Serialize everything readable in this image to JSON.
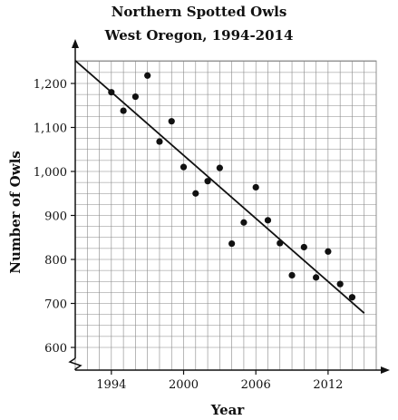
{
  "chart_data": {
    "type": "scatter",
    "title": "Northern Spotted Owls",
    "subtitle": "West Oregon, 1994-2014",
    "xlabel": "Year",
    "ylabel": "Number of Owls",
    "xlim": [
      1991,
      2016
    ],
    "ylim": [
      600,
      1250
    ],
    "x_ticks": [
      1994,
      2000,
      2006,
      2012
    ],
    "x_tick_labels": [
      "1994",
      "2000",
      "2006",
      "2012"
    ],
    "y_ticks": [
      600,
      700,
      800,
      900,
      1000,
      1100,
      1200
    ],
    "y_tick_labels": [
      "600",
      "700",
      "800",
      "900",
      "1,000",
      "1,100",
      "1,200"
    ],
    "grid": true,
    "y_axis_break": true,
    "series": [
      {
        "points": [
          {
            "x": 1994,
            "y": 1180
          },
          {
            "x": 1995,
            "y": 1138
          },
          {
            "x": 1996,
            "y": 1170
          },
          {
            "x": 1997,
            "y": 1218
          },
          {
            "x": 1998,
            "y": 1068
          },
          {
            "x": 1999,
            "y": 1114
          },
          {
            "x": 2000,
            "y": 1010
          },
          {
            "x": 2001,
            "y": 950
          },
          {
            "x": 2002,
            "y": 978
          },
          {
            "x": 2003,
            "y": 1008
          },
          {
            "x": 2004,
            "y": 836
          },
          {
            "x": 2005,
            "y": 884
          },
          {
            "x": 2006,
            "y": 964
          },
          {
            "x": 2007,
            "y": 889
          },
          {
            "x": 2008,
            "y": 837
          },
          {
            "x": 2009,
            "y": 764
          },
          {
            "x": 2010,
            "y": 828
          },
          {
            "x": 2011,
            "y": 759
          },
          {
            "x": 2012,
            "y": 818
          },
          {
            "x": 2013,
            "y": 744
          },
          {
            "x": 2014,
            "y": 714
          }
        ]
      }
    ],
    "trend_line": {
      "x": [
        1991,
        2015
      ],
      "y": [
        1252,
        678
      ]
    },
    "colors": {
      "points": "#111111",
      "line": "#111111",
      "grid": "#888888",
      "axes": "#111111"
    }
  }
}
